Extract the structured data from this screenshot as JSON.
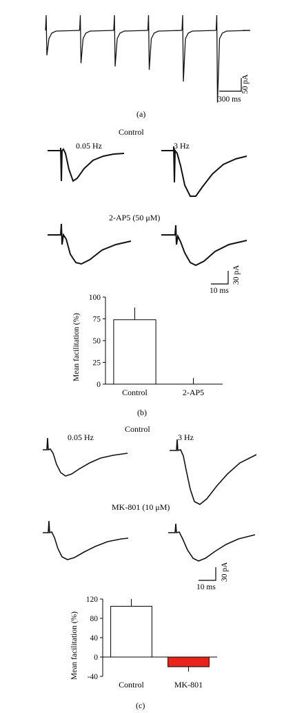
{
  "panel_a": {
    "label": "(a)",
    "scale_time": "300 ms",
    "scale_current": "50 pA",
    "train_peak_amplitudes_pA": [
      38,
      50,
      55,
      60,
      78,
      110
    ]
  },
  "panel_b": {
    "label": "(b)",
    "condition_1": "Control",
    "condition_2": "2-AP5 (50 μM)",
    "freq_low": "0.05 Hz",
    "freq_high": "3 Hz",
    "scale_time": "10 ms",
    "scale_current": "30 pA"
  },
  "panel_c": {
    "label": "(c)",
    "condition_1": "Control",
    "condition_2": "MK-801 (10 μM)",
    "freq_low": "0.05 Hz",
    "freq_high": "3 Hz",
    "scale_time": "10 ms",
    "scale_current": "30 pA"
  },
  "chart_data": [
    {
      "type": "bar",
      "categories": [
        "Control",
        "2-AP5"
      ],
      "values": [
        74,
        0
      ],
      "error_bars": [
        14,
        7
      ],
      "ylabel": "Mean facilitation (%)",
      "ylim": [
        0,
        100
      ],
      "yticks": [
        0,
        25,
        50,
        75,
        100
      ],
      "bar_colors": [
        "#ffffff",
        "#ffffff"
      ]
    },
    {
      "type": "bar",
      "categories": [
        "Control",
        "MK-801"
      ],
      "values": [
        105,
        -20
      ],
      "error_bars": [
        15,
        10
      ],
      "ylabel": "Mean facilitation (%)",
      "ylim": [
        -40,
        120
      ],
      "yticks": [
        -40,
        0,
        40,
        80,
        120
      ],
      "bar_colors": [
        "#ffffff",
        "#e8241c"
      ]
    }
  ]
}
